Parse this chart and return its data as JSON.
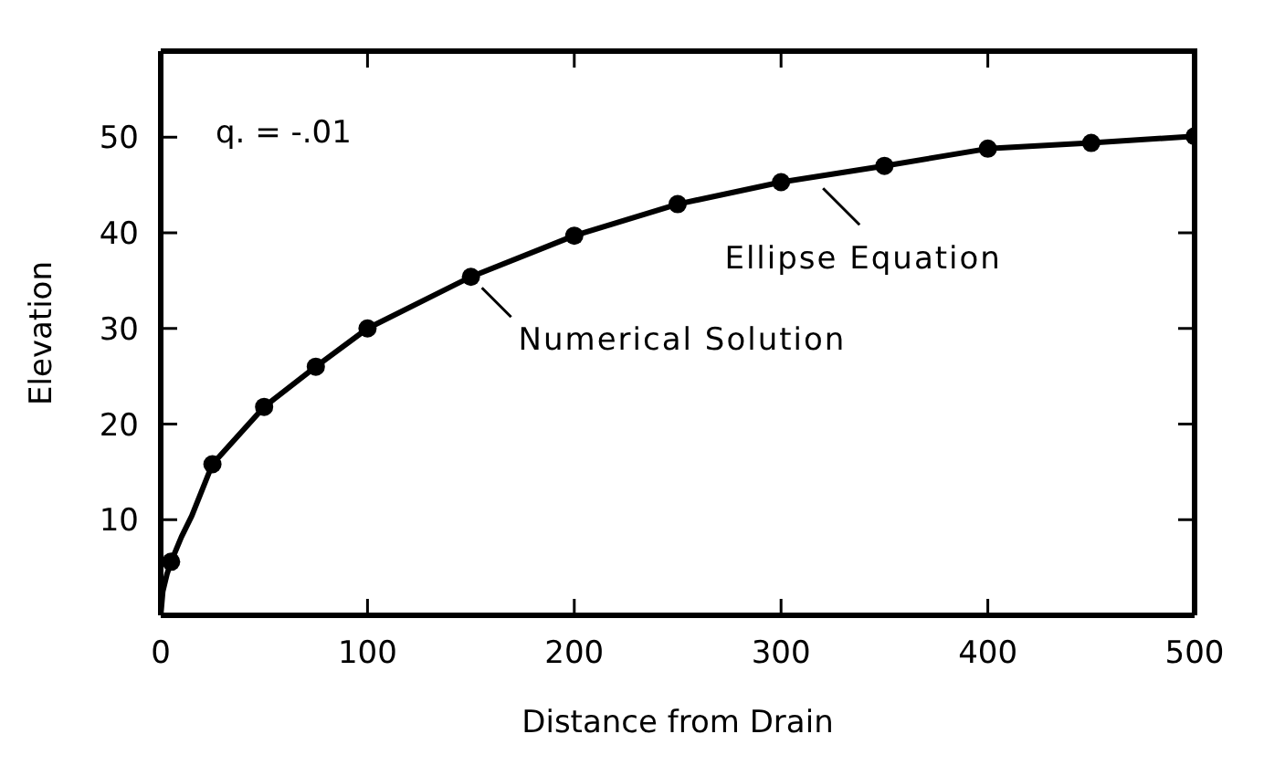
{
  "chart_data": {
    "type": "line",
    "xlabel": "Distance from Drain",
    "ylabel": "Elevation",
    "xlim": [
      0,
      500
    ],
    "ylim": [
      0,
      59
    ],
    "xticks": [
      0,
      100,
      200,
      300,
      400,
      500
    ],
    "yticks": [
      10,
      20,
      30,
      40,
      50
    ],
    "series": [
      {
        "type": "scatter",
        "marker": "circle",
        "color": "#000000",
        "x": [
          5,
          25,
          50,
          75,
          100,
          150,
          200,
          250,
          300,
          350,
          400,
          450,
          500
        ],
        "values": [
          5.6,
          15.8,
          21.8,
          26,
          30,
          35.4,
          39.7,
          43,
          45.3,
          47,
          48.8,
          49.4,
          50.1
        ]
      },
      {
        "marker": "none",
        "color": "#000000",
        "x": [
          0,
          1,
          3,
          5,
          10,
          15,
          25,
          50,
          75,
          100,
          150,
          200,
          250,
          300,
          350,
          400,
          450,
          500
        ],
        "values": [
          0,
          2.5,
          4.3,
          5.6,
          8.2,
          10.4,
          15.8,
          21.8,
          26,
          30,
          35.4,
          39.7,
          43,
          45.3,
          47,
          48.8,
          49.4,
          50.1
        ]
      }
    ],
    "annotations": [
      "q. = -.01",
      {
        "text": "Numerical Solution",
        "x": 150,
        "y": 35.4
      },
      {
        "text": "Ellipse Equation",
        "x": 315,
        "y": 45.8
      }
    ]
  }
}
